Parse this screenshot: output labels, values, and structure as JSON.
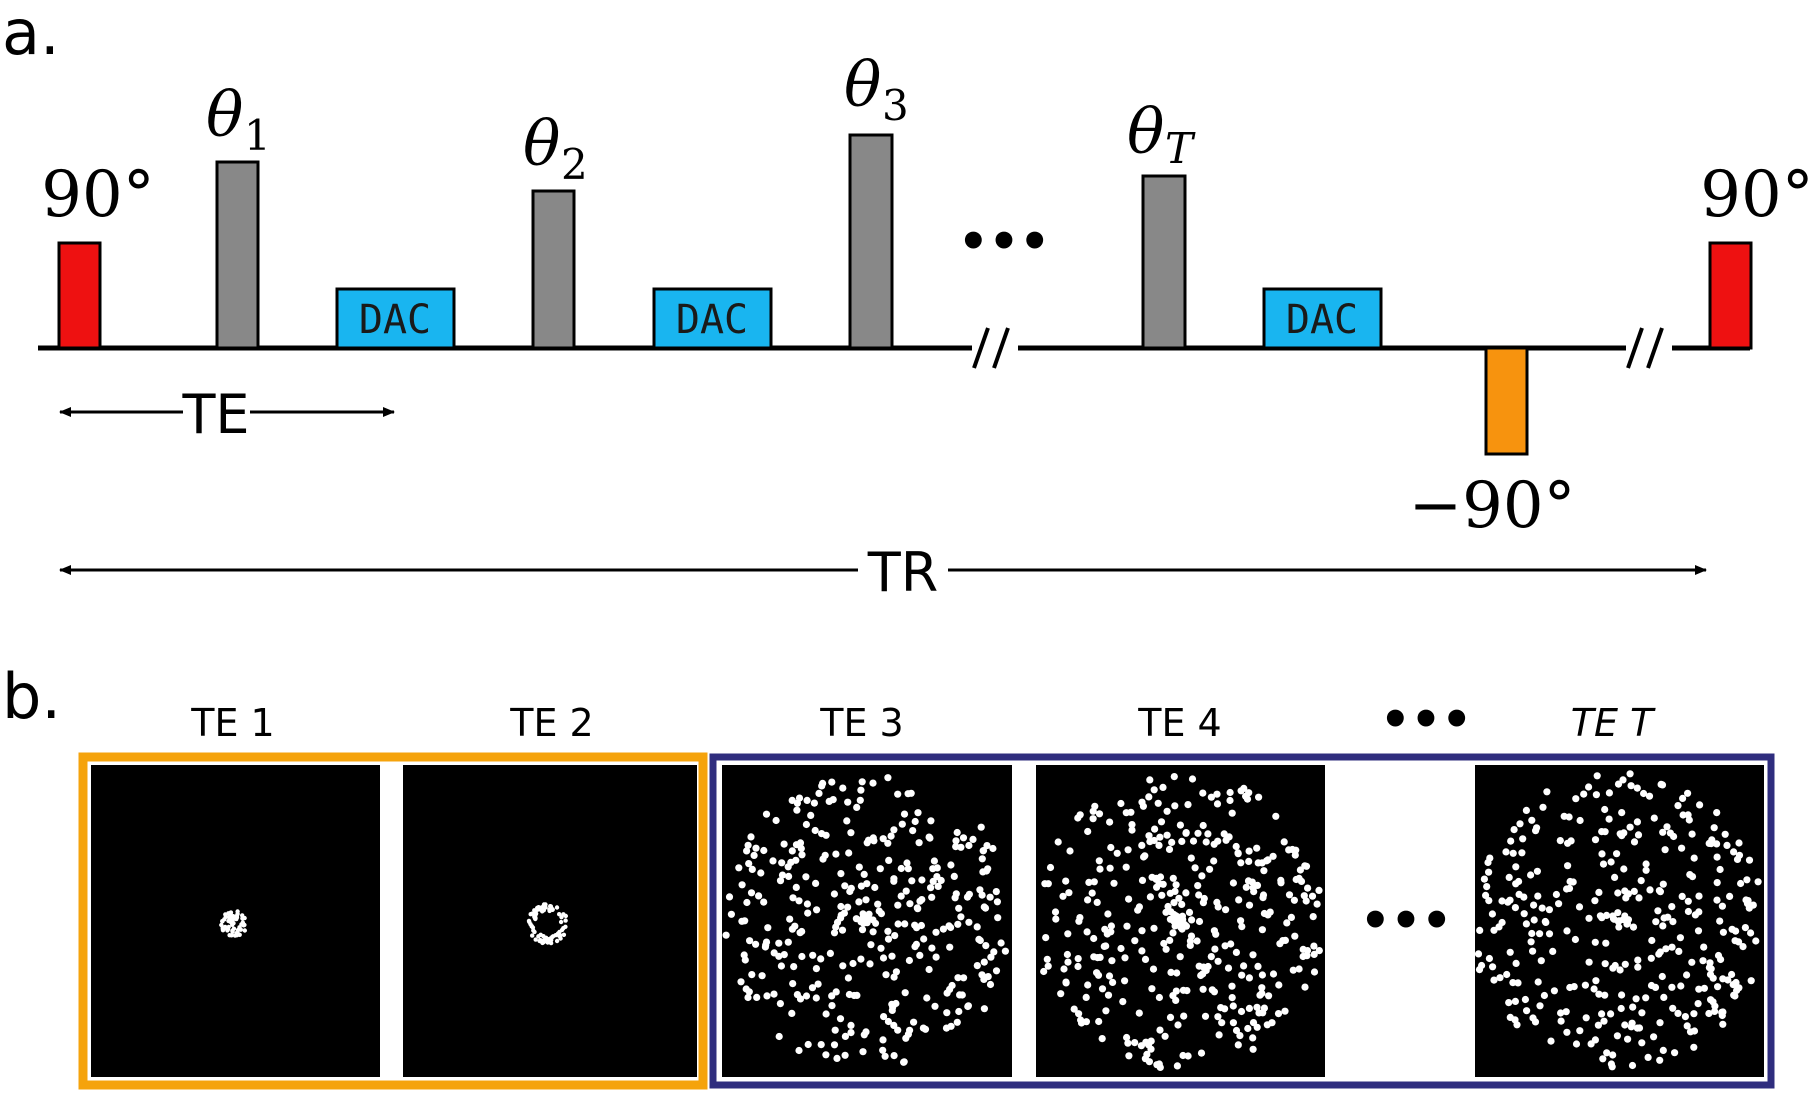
{
  "panel_a": {
    "label": "a.",
    "pulses": {
      "start_flip": "90°",
      "theta1": "θ",
      "theta1_sub": "1",
      "theta2": "θ",
      "theta2_sub": "2",
      "theta3": "θ",
      "theta3_sub": "3",
      "thetaT": "θ",
      "thetaT_sub": "T",
      "neg_flip": "−90°",
      "end_flip": "90°"
    },
    "dac_label": "DAC",
    "ellipsis": "•••",
    "te_label": "TE",
    "tr_label": "TR",
    "colors": {
      "flip_pulse": "#ee1111",
      "theta_pulse": "#888888",
      "dac_block": "#19b5f0",
      "neg_pulse": "#f7930e"
    }
  },
  "panel_b": {
    "label": "b.",
    "echo_titles": [
      "TE 1",
      "TE 2",
      "TE 3",
      "TE 4",
      "TE T"
    ],
    "ellipsis": "•••",
    "colors": {
      "group1_border": "#f5a30c",
      "group2_border": "#2f2d7e",
      "image_background": "#000000",
      "dots": "#ffffff"
    }
  }
}
